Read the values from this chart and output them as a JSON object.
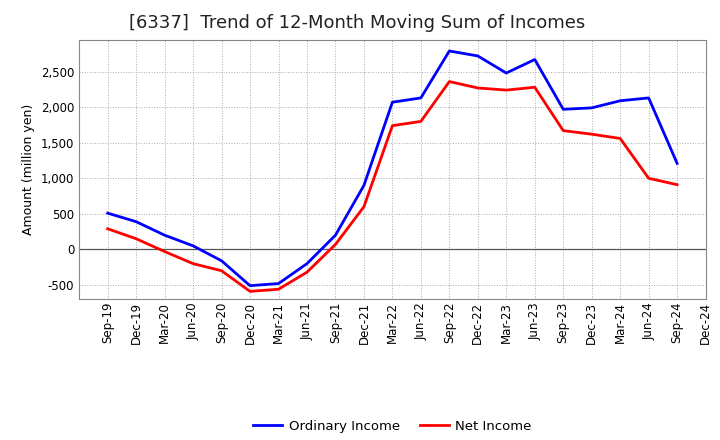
{
  "title": "[6337]  Trend of 12-Month Moving Sum of Incomes",
  "ylabel": "Amount (million yen)",
  "x_labels": [
    "Sep-19",
    "Dec-19",
    "Mar-20",
    "Jun-20",
    "Sep-20",
    "Dec-20",
    "Mar-21",
    "Jun-21",
    "Sep-21",
    "Dec-21",
    "Mar-22",
    "Jun-22",
    "Sep-22",
    "Dec-22",
    "Mar-23",
    "Jun-23",
    "Sep-23",
    "Dec-23",
    "Mar-24",
    "Jun-24",
    "Sep-24",
    "Dec-24"
  ],
  "ordinary_income": [
    510,
    390,
    200,
    50,
    -160,
    -510,
    -480,
    -200,
    200,
    900,
    2070,
    2130,
    2790,
    2720,
    2480,
    2670,
    1970,
    1990,
    2090,
    2130,
    1210,
    null
  ],
  "net_income": [
    290,
    150,
    -30,
    -200,
    -300,
    -590,
    -560,
    -320,
    70,
    600,
    1740,
    1800,
    2360,
    2270,
    2240,
    2280,
    1670,
    1620,
    1560,
    1000,
    910,
    null
  ],
  "ordinary_color": "#0000ff",
  "net_color": "#ff0000",
  "ylim": [
    -700,
    2950
  ],
  "yticks": [
    -500,
    0,
    500,
    1000,
    1500,
    2000,
    2500
  ],
  "background_color": "#ffffff",
  "grid_color": "#aaaaaa",
  "title_fontsize": 13,
  "axis_fontsize": 8.5,
  "legend_fontsize": 9.5,
  "title_color": "#222222",
  "line_width": 2.0
}
